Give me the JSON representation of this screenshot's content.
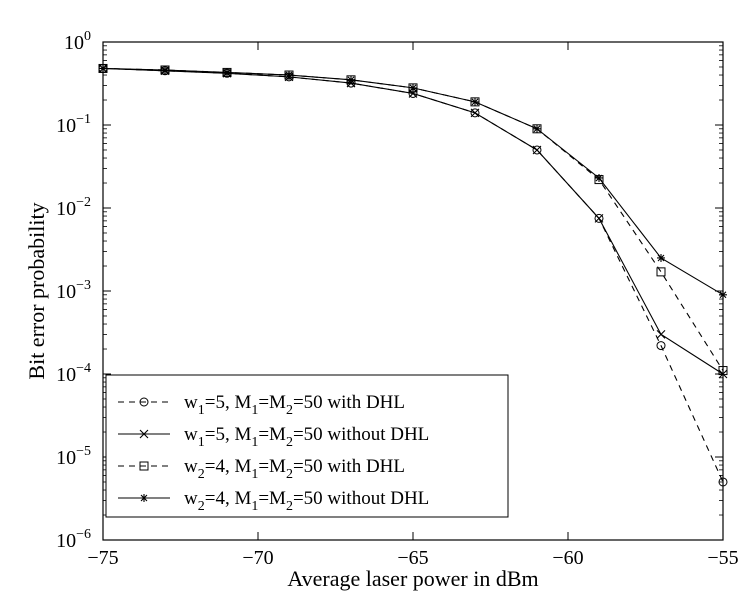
{
  "chart_data": {
    "type": "line",
    "title": "",
    "xlabel": "Average laser power in dBm",
    "ylabel": "Bit error probability",
    "xlim": [
      -75,
      -55
    ],
    "ylim": [
      1e-06,
      1
    ],
    "yscale": "log",
    "grid": false,
    "legend_position": "bottom-left",
    "x_ticks": [
      -75,
      -70,
      -65,
      -60,
      -55
    ],
    "x_tick_labels": [
      "−75",
      "−70",
      "−65",
      "−60",
      "−55"
    ],
    "y_ticks": [
      1e-06,
      1e-05,
      0.0001,
      0.001,
      0.01,
      0.1,
      1
    ],
    "y_tick_exponents": [
      "−6",
      "−5",
      "−4",
      "−3",
      "−2",
      "−1",
      "0"
    ],
    "y_tick_base": "10",
    "series": [
      {
        "name": "w1=5, M1=M2=50 with DHL",
        "label": {
          "parts": [
            [
              "w",
              ""
            ],
            [
              "1",
              "sub"
            ],
            [
              "=5, M",
              ""
            ],
            [
              "1",
              "sub"
            ],
            [
              "=M",
              ""
            ],
            [
              "2",
              "sub"
            ],
            [
              "=50 with DHL",
              ""
            ]
          ]
        },
        "marker": "circle",
        "dash": true,
        "x": [
          -75,
          -73,
          -71,
          -69,
          -67,
          -65,
          -63,
          -61,
          -59,
          -57,
          -55
        ],
        "y": [
          0.48,
          0.45,
          0.42,
          0.38,
          0.32,
          0.24,
          0.14,
          0.05,
          0.0075,
          0.00022,
          5e-06
        ]
      },
      {
        "name": "w1=5, M1=M2=50 without DHL",
        "label": {
          "parts": [
            [
              "w",
              ""
            ],
            [
              "1",
              "sub"
            ],
            [
              "=5, M",
              ""
            ],
            [
              "1",
              "sub"
            ],
            [
              "=M",
              ""
            ],
            [
              "2",
              "sub"
            ],
            [
              "=50 without DHL",
              ""
            ]
          ]
        },
        "marker": "x",
        "dash": false,
        "x": [
          -75,
          -73,
          -71,
          -69,
          -67,
          -65,
          -63,
          -61,
          -59,
          -57,
          -55
        ],
        "y": [
          0.48,
          0.45,
          0.42,
          0.38,
          0.32,
          0.24,
          0.14,
          0.05,
          0.0075,
          0.0003,
          0.0001
        ]
      },
      {
        "name": "w2=4, M1=M2=50 with DHL",
        "label": {
          "parts": [
            [
              "w",
              ""
            ],
            [
              "2",
              "sub"
            ],
            [
              "=4, M",
              ""
            ],
            [
              "1",
              "sub"
            ],
            [
              "=M",
              ""
            ],
            [
              "2",
              "sub"
            ],
            [
              "=50 with DHL",
              ""
            ]
          ]
        },
        "marker": "square",
        "dash": true,
        "x": [
          -75,
          -73,
          -71,
          -69,
          -67,
          -65,
          -63,
          -61,
          -59,
          -57,
          -55
        ],
        "y": [
          0.48,
          0.46,
          0.43,
          0.4,
          0.35,
          0.28,
          0.19,
          0.09,
          0.022,
          0.0017,
          0.00011
        ]
      },
      {
        "name": "w2=4, M1=M2=50 without DHL",
        "label": {
          "parts": [
            [
              "w",
              ""
            ],
            [
              "2",
              "sub"
            ],
            [
              "=4, M",
              ""
            ],
            [
              "1",
              "sub"
            ],
            [
              "=M",
              ""
            ],
            [
              "2",
              "sub"
            ],
            [
              "=50 without DHL",
              ""
            ]
          ]
        },
        "marker": "star",
        "dash": false,
        "x": [
          -75,
          -73,
          -71,
          -69,
          -67,
          -65,
          -63,
          -61,
          -59,
          -57,
          -55
        ],
        "y": [
          0.48,
          0.46,
          0.43,
          0.4,
          0.35,
          0.28,
          0.19,
          0.09,
          0.023,
          0.0025,
          0.0009
        ]
      }
    ]
  }
}
